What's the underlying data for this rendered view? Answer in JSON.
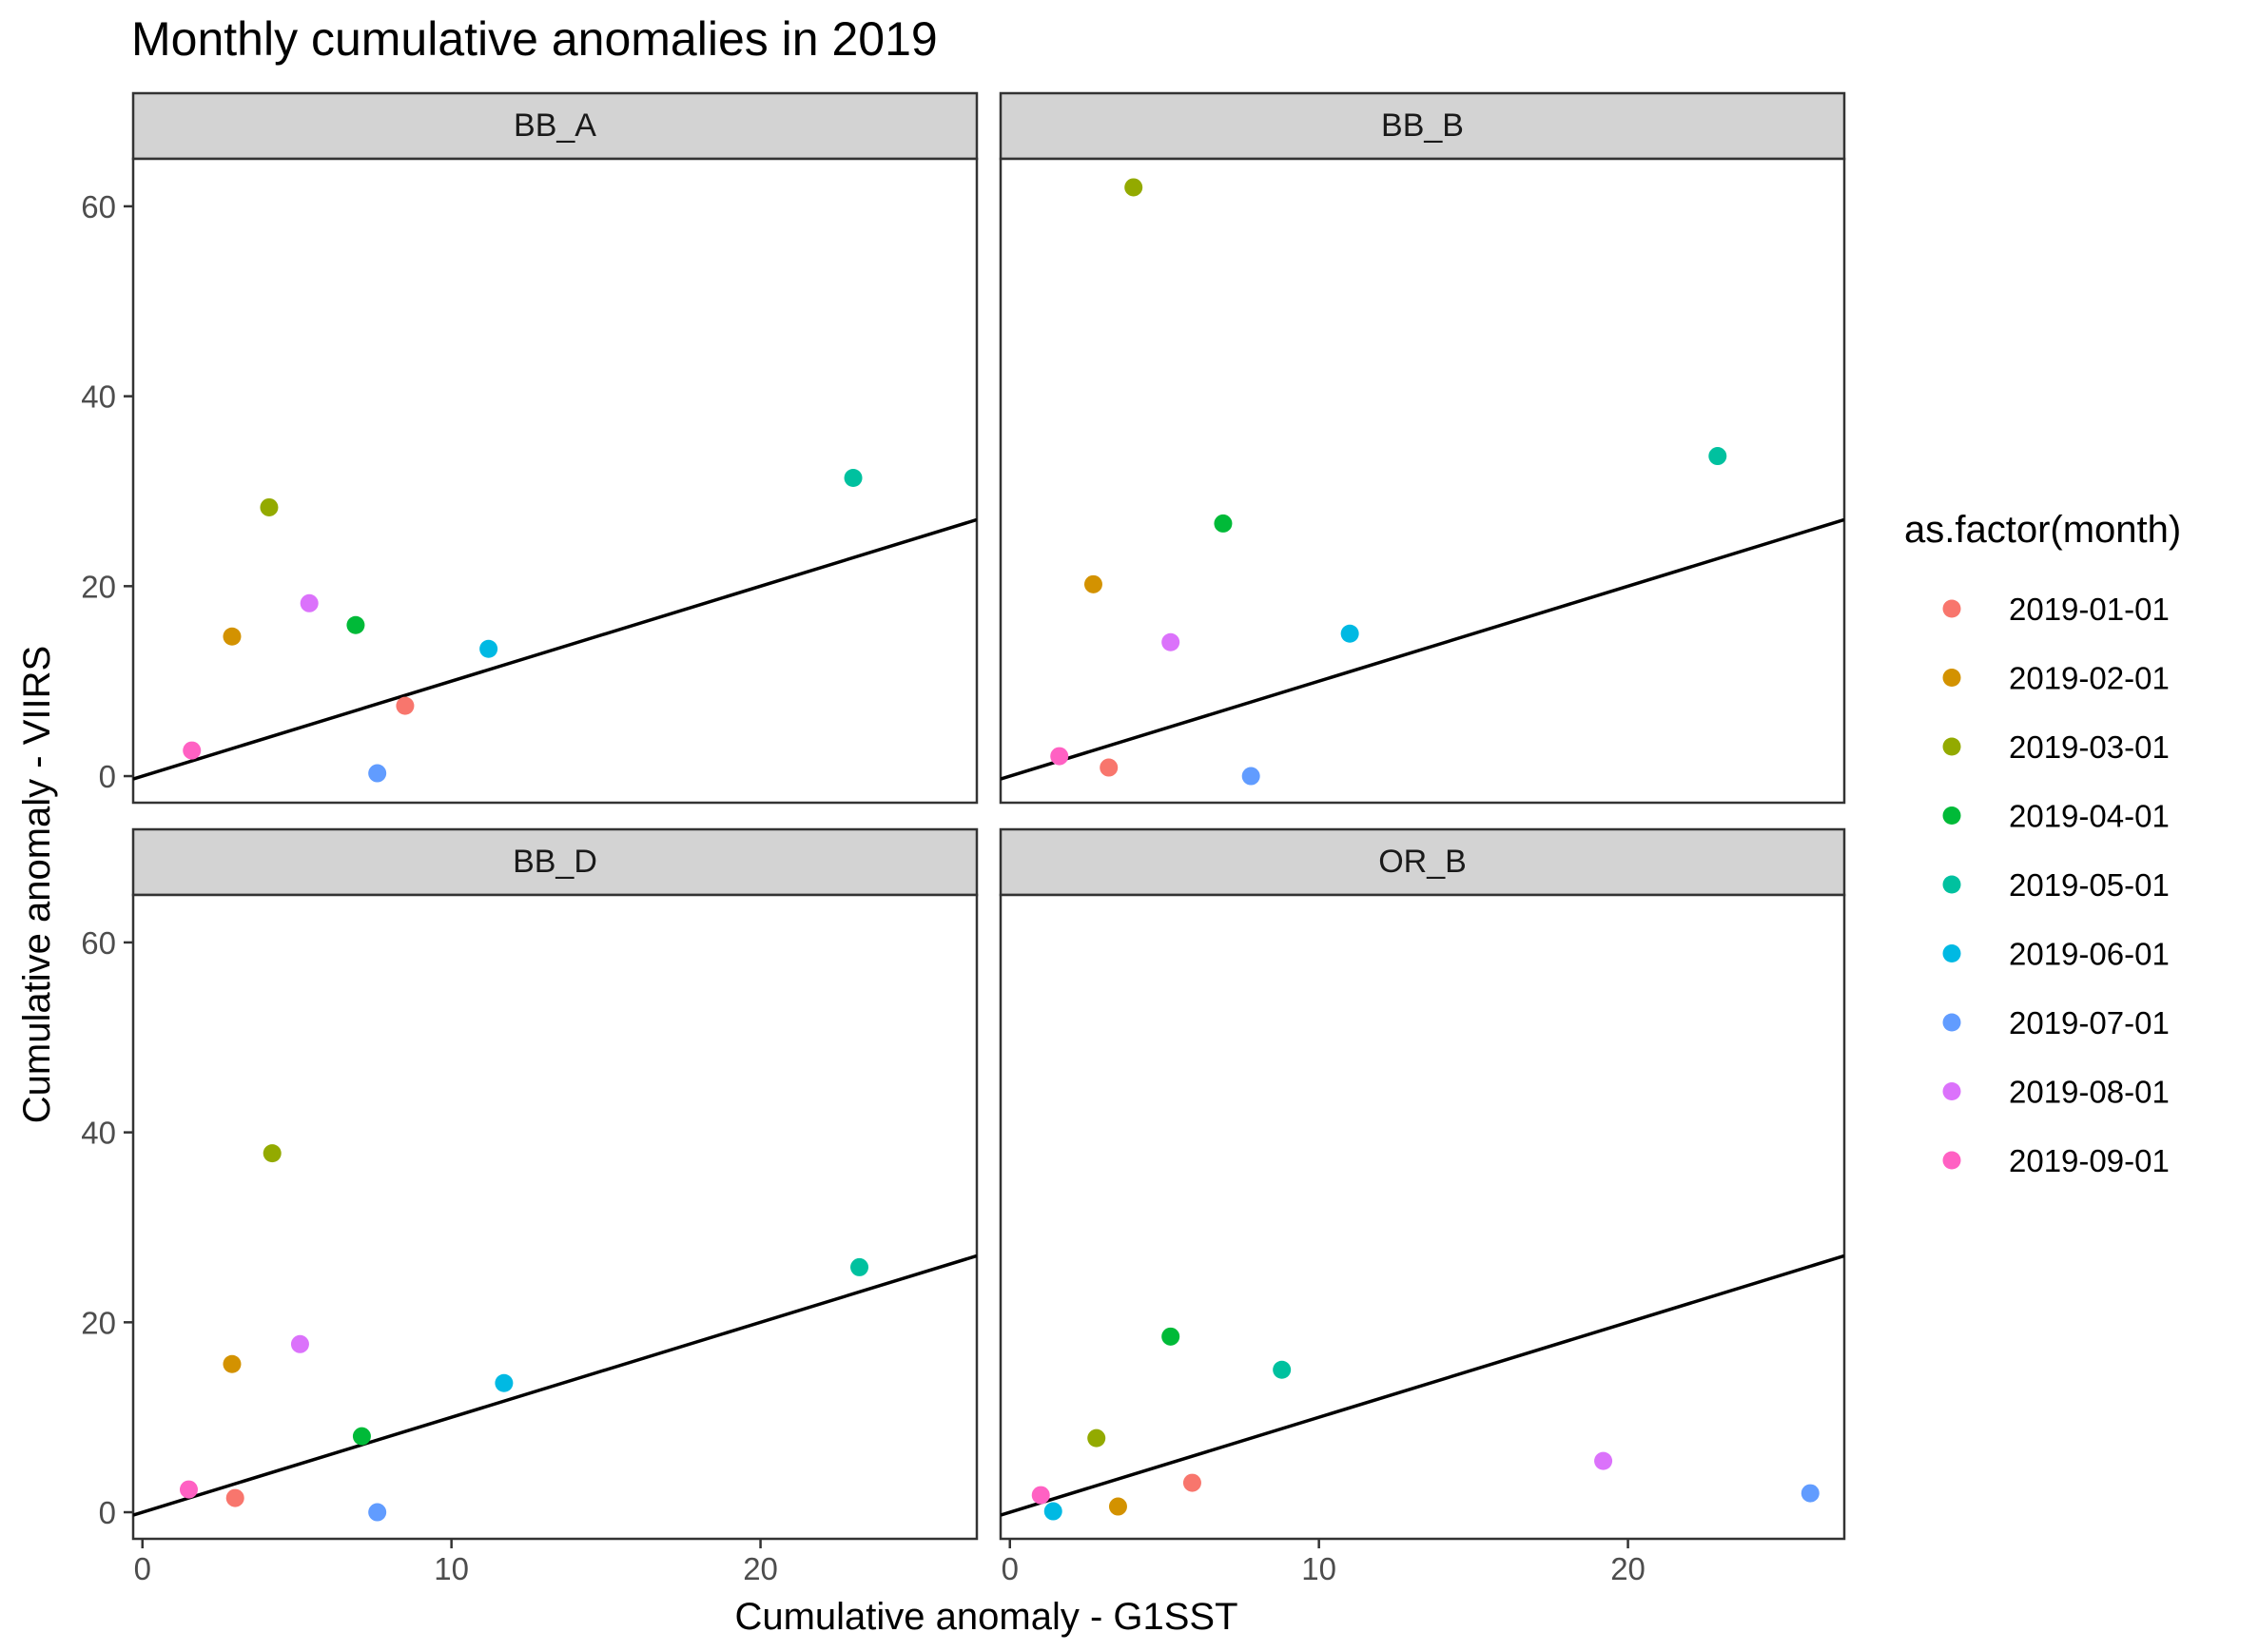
{
  "chart_data": {
    "type": "scatter",
    "title": "Monthly cumulative anomalies in 2019",
    "xlabel": "Cumulative anomaly - G1SST",
    "ylabel": "Cumulative anomaly - VIIRS",
    "xlim": [
      -0.3,
      27
    ],
    "ylim": [
      -2.8,
      65
    ],
    "x_ticks": [
      0,
      10,
      20
    ],
    "y_ticks": [
      0,
      20,
      40,
      60
    ],
    "grid": false,
    "reference_line": {
      "slope": 1,
      "intercept": 0
    },
    "legend": {
      "title": "as.factor(month)",
      "position": "right",
      "entries": [
        {
          "label": "2019-01-01",
          "color": "#F8766D"
        },
        {
          "label": "2019-02-01",
          "color": "#D39200"
        },
        {
          "label": "2019-03-01",
          "color": "#93AA00"
        },
        {
          "label": "2019-04-01",
          "color": "#00BA38"
        },
        {
          "label": "2019-05-01",
          "color": "#00C19F"
        },
        {
          "label": "2019-06-01",
          "color": "#00B9E3"
        },
        {
          "label": "2019-07-01",
          "color": "#619CFF"
        },
        {
          "label": "2019-08-01",
          "color": "#DB72FB"
        },
        {
          "label": "2019-09-01",
          "color": "#FF61C3"
        }
      ]
    },
    "panels": [
      {
        "name": "BB_A",
        "points": [
          {
            "month": "2019-01-01",
            "x": 8.5,
            "y": 7.4
          },
          {
            "month": "2019-02-01",
            "x": 2.9,
            "y": 14.7
          },
          {
            "month": "2019-03-01",
            "x": 4.1,
            "y": 28.3
          },
          {
            "month": "2019-04-01",
            "x": 6.9,
            "y": 15.9
          },
          {
            "month": "2019-05-01",
            "x": 23.0,
            "y": 31.4
          },
          {
            "month": "2019-06-01",
            "x": 11.2,
            "y": 13.4
          },
          {
            "month": "2019-07-01",
            "x": 7.6,
            "y": 0.3
          },
          {
            "month": "2019-08-01",
            "x": 5.4,
            "y": 18.2
          },
          {
            "month": "2019-09-01",
            "x": 1.6,
            "y": 2.7
          }
        ]
      },
      {
        "name": "BB_B",
        "points": [
          {
            "month": "2019-01-01",
            "x": 3.2,
            "y": 0.9
          },
          {
            "month": "2019-02-01",
            "x": 2.7,
            "y": 20.2
          },
          {
            "month": "2019-03-01",
            "x": 4.0,
            "y": 62.0
          },
          {
            "month": "2019-04-01",
            "x": 6.9,
            "y": 26.6
          },
          {
            "month": "2019-05-01",
            "x": 22.9,
            "y": 33.7
          },
          {
            "month": "2019-06-01",
            "x": 11.0,
            "y": 15.0
          },
          {
            "month": "2019-07-01",
            "x": 7.8,
            "y": 0.0
          },
          {
            "month": "2019-08-01",
            "x": 5.2,
            "y": 14.1
          },
          {
            "month": "2019-09-01",
            "x": 1.6,
            "y": 2.1
          }
        ]
      },
      {
        "name": "BB_D",
        "points": [
          {
            "month": "2019-01-01",
            "x": 3.0,
            "y": 1.5
          },
          {
            "month": "2019-02-01",
            "x": 2.9,
            "y": 15.6
          },
          {
            "month": "2019-03-01",
            "x": 4.2,
            "y": 37.8
          },
          {
            "month": "2019-04-01",
            "x": 7.1,
            "y": 8.0
          },
          {
            "month": "2019-05-01",
            "x": 23.2,
            "y": 25.8
          },
          {
            "month": "2019-06-01",
            "x": 11.7,
            "y": 13.6
          },
          {
            "month": "2019-07-01",
            "x": 7.6,
            "y": 0.0
          },
          {
            "month": "2019-08-01",
            "x": 5.1,
            "y": 17.7
          },
          {
            "month": "2019-09-01",
            "x": 1.5,
            "y": 2.4
          }
        ]
      },
      {
        "name": "OR_B",
        "points": [
          {
            "month": "2019-01-01",
            "x": 5.9,
            "y": 3.1
          },
          {
            "month": "2019-02-01",
            "x": 3.5,
            "y": 0.6
          },
          {
            "month": "2019-03-01",
            "x": 2.8,
            "y": 7.8
          },
          {
            "month": "2019-04-01",
            "x": 5.2,
            "y": 18.5
          },
          {
            "month": "2019-05-01",
            "x": 8.8,
            "y": 15.0
          },
          {
            "month": "2019-06-01",
            "x": 1.4,
            "y": 0.1
          },
          {
            "month": "2019-07-01",
            "x": 25.9,
            "y": 2.0
          },
          {
            "month": "2019-08-01",
            "x": 19.2,
            "y": 5.4
          },
          {
            "month": "2019-09-01",
            "x": 1.0,
            "y": 1.8
          }
        ]
      }
    ]
  }
}
